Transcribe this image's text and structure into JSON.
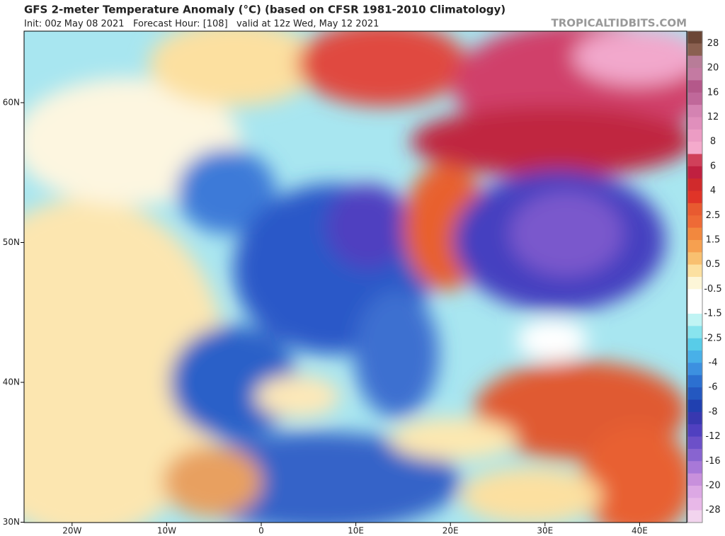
{
  "header": {
    "title": "GFS 2-meter Temperature Anomaly (°C) (based on CFSR 1981-2010 Climatology)",
    "subtitle": "Init: 00z May 08 2021   Forecast Hour: [108]   valid at 12z Wed, May 12 2021",
    "watermark": "TROPICALTIDBITS.COM"
  },
  "map": {
    "lat_ticks": [
      {
        "value": 60,
        "label": "60N"
      },
      {
        "value": 50,
        "label": "50N"
      },
      {
        "value": 40,
        "label": "40N"
      },
      {
        "value": 30,
        "label": "30N"
      }
    ],
    "lon_ticks": [
      {
        "value": -20,
        "label": "20W"
      },
      {
        "value": -10,
        "label": "10W"
      },
      0,
      {
        "value": 10,
        "label": "10E"
      },
      {
        "value": 20,
        "label": "20E"
      },
      {
        "value": 30,
        "label": "30E"
      },
      {
        "value": 40,
        "label": "40E"
      }
    ],
    "colorbar": {
      "colors": [
        "#6b4636",
        "#8a6050",
        "#b87c98",
        "#c47aa2",
        "#b4588a",
        "#c0689a",
        "#d483b2",
        "#e08fbc",
        "#ec9cc4",
        "#f4aacc",
        "#d0405a",
        "#c02040",
        "#d02a2c",
        "#e03428",
        "#e85a30",
        "#ee6a36",
        "#f2883e",
        "#f6a050",
        "#f8c070",
        "#fce0a0",
        "#fdf6d8",
        "#ffffff",
        "#ffffff",
        "#c0f4f4",
        "#88e4ee",
        "#58cce8",
        "#48b0e8",
        "#3c90e0",
        "#2c70d0",
        "#2458c0",
        "#2040b0",
        "#3838b0",
        "#5040c0",
        "#6c50c8",
        "#8864d0",
        "#a878d8",
        "#c890dc",
        "#dca8e4",
        "#e8b8e8",
        "#f2d4ee"
      ],
      "labels": [
        28,
        20,
        16,
        12,
        8,
        6,
        4,
        2.5,
        1.5,
        0.5,
        -0.5,
        -1.5,
        -2.5,
        -4,
        -6,
        -8,
        -12,
        -16,
        -20,
        -28
      ]
    }
  }
}
